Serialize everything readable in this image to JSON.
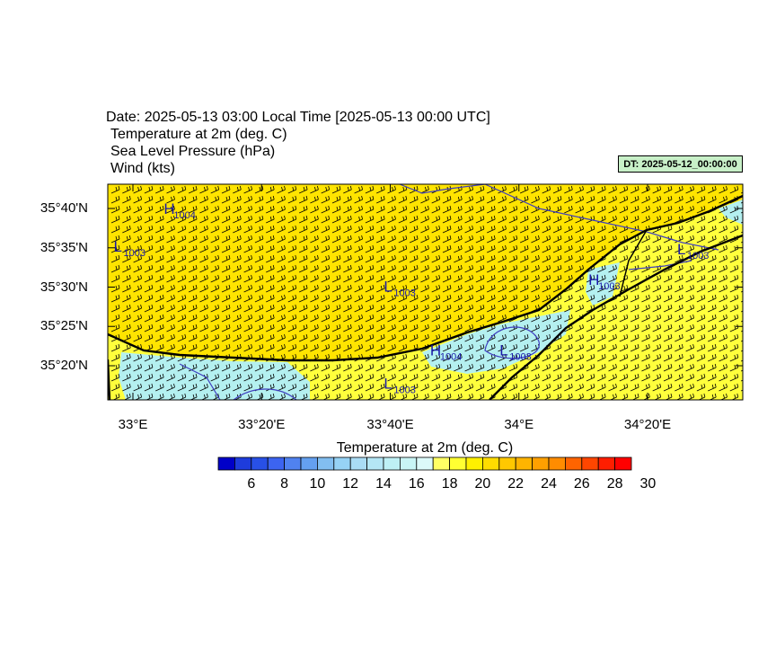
{
  "header": {
    "date_line": "Date: 2025-05-13  03:00 Local Time [2025-05-13  00:00 UTC]",
    "field1": "Temperature at 2m   (deg. C)",
    "field2": "Sea Level Pressure   (hPa)",
    "field3": "Wind   (kts)",
    "dt_badge": "DT: 2025-05-12_00:00:00"
  },
  "map": {
    "lat_ticks": [
      {
        "label": "35°40'N",
        "lat": 35.6667
      },
      {
        "label": "35°35'N",
        "lat": 35.5833
      },
      {
        "label": "35°30'N",
        "lat": 35.5
      },
      {
        "label": "35°25'N",
        "lat": 35.4167
      },
      {
        "label": "35°20'N",
        "lat": 35.3333
      }
    ],
    "lon_ticks": [
      {
        "label": "33°E",
        "lon": 33.0
      },
      {
        "label": "33°20'E",
        "lon": 33.3333
      },
      {
        "label": "33°40'E",
        "lon": 33.6667
      },
      {
        "label": "34°E",
        "lon": 34.0
      },
      {
        "label": "34°20'E",
        "lon": 34.3333
      }
    ],
    "pressure_centers": [
      {
        "type": "L",
        "value": "1003",
        "lon": 32.95,
        "lat": 35.575
      },
      {
        "type": "H",
        "value": "1004",
        "lon": 33.08,
        "lat": 35.655
      },
      {
        "type": "L",
        "value": "1003",
        "lon": 33.65,
        "lat": 35.49
      },
      {
        "type": "H",
        "value": "1004",
        "lon": 33.77,
        "lat": 35.355
      },
      {
        "type": "L",
        "value": "1003",
        "lon": 33.95,
        "lat": 35.355
      },
      {
        "type": "H",
        "value": "1003",
        "lon": 34.18,
        "lat": 35.505
      },
      {
        "type": "L",
        "value": "1003",
        "lon": 34.41,
        "lat": 35.57
      },
      {
        "type": "L",
        "value": "1003",
        "lon": 33.65,
        "lat": 35.285
      }
    ],
    "colors": {
      "land_warm": "#ffff33",
      "sea_warm": "#ffe600",
      "cool": "#b4f0f0",
      "coast": "#000000",
      "isobar": "#3333cc",
      "label": "#1a1aaa"
    }
  },
  "colorbar": {
    "title": "Temperature at 2m  (deg. C)",
    "colors": [
      "#0000c8",
      "#1e3cdc",
      "#2850e6",
      "#3c64f0",
      "#5082f0",
      "#64a0f0",
      "#82beF0",
      "#96d2f5",
      "#aadcf5",
      "#b4e6f5",
      "#beF0f5",
      "#c8f5f5",
      "#dcfafa",
      "#ffff64",
      "#ffff32",
      "#fff000",
      "#ffdc00",
      "#ffc800",
      "#ffb400",
      "#ffa000",
      "#ff8c00",
      "#ff6400",
      "#ff4600",
      "#ff1e00",
      "#ff0000"
    ],
    "labels": [
      "6",
      "8",
      "10",
      "12",
      "14",
      "16",
      "18",
      "20",
      "22",
      "24",
      "26",
      "28",
      "30"
    ]
  }
}
